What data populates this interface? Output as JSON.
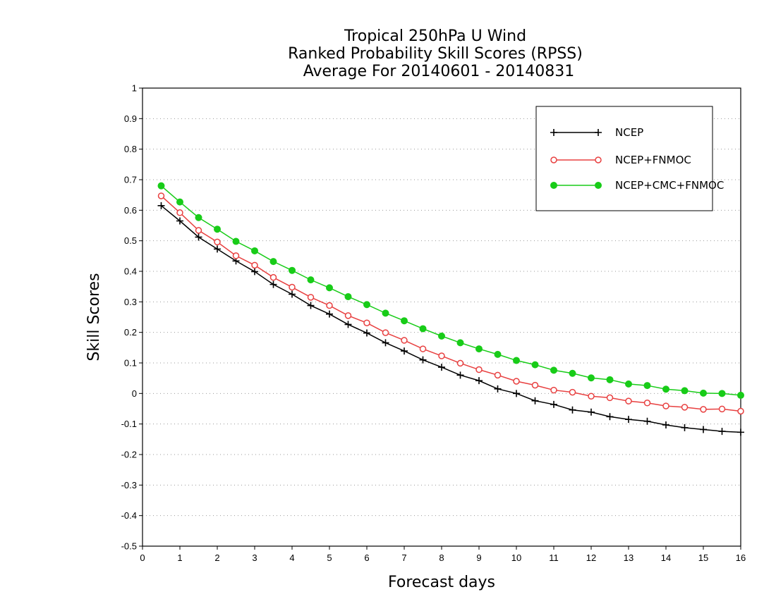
{
  "chart_data": {
    "type": "line",
    "title": [
      "Tropical 250hPa U Wind",
      "Ranked Probability Skill Scores (RPSS)",
      "Average For 20140601 - 20140831"
    ],
    "xlabel": "Forecast days",
    "ylabel": "Skill Scores",
    "xlim": [
      0,
      16
    ],
    "ylim": [
      -0.5,
      1
    ],
    "xticks": [
      "0",
      "1",
      "2",
      "3",
      "4",
      "5",
      "6",
      "7",
      "8",
      "9",
      "10",
      "11",
      "12",
      "13",
      "14",
      "15",
      "16"
    ],
    "yticks": [
      "1",
      "0.9",
      "0.8",
      "0.7",
      "0.6",
      "0.5",
      "0.4",
      "0.3",
      "0.2",
      "0.1",
      "0",
      "-0.1",
      "-0.2",
      "-0.3",
      "-0.4",
      "-0.5"
    ],
    "ytick_values": [
      1,
      0.9,
      0.8,
      0.7,
      0.6,
      0.5,
      0.4,
      0.3,
      0.2,
      0.1,
      0,
      -0.1,
      -0.2,
      -0.3,
      -0.4,
      -0.5
    ],
    "grid": "horizontal dotted",
    "legend_position": "top-right",
    "x": [
      0.5,
      1,
      1.5,
      2,
      2.5,
      3,
      3.5,
      4,
      4.5,
      5,
      5.5,
      6,
      6.5,
      7,
      7.5,
      8,
      8.5,
      9,
      9.5,
      10,
      10.5,
      11,
      11.5,
      12,
      12.5,
      13,
      13.5,
      14,
      14.5,
      15,
      15.5,
      16
    ],
    "series": [
      {
        "name": "NCEP",
        "color": "#000000",
        "marker": "plus",
        "values": [
          0.615,
          0.565,
          0.512,
          0.473,
          0.434,
          0.399,
          0.357,
          0.325,
          0.288,
          0.26,
          0.226,
          0.198,
          0.166,
          0.139,
          0.11,
          0.086,
          0.06,
          0.042,
          0.015,
          0.0,
          -0.024,
          -0.036,
          -0.054,
          -0.061,
          -0.076,
          -0.085,
          -0.091,
          -0.103,
          -0.112,
          -0.118,
          -0.124,
          -0.127
        ]
      },
      {
        "name": "NCEP+FNMOC",
        "color": "#e84040",
        "marker": "open-circle",
        "values": [
          0.647,
          0.592,
          0.534,
          0.496,
          0.451,
          0.42,
          0.38,
          0.348,
          0.315,
          0.288,
          0.255,
          0.231,
          0.199,
          0.174,
          0.146,
          0.123,
          0.099,
          0.078,
          0.06,
          0.04,
          0.027,
          0.011,
          0.004,
          -0.009,
          -0.014,
          -0.025,
          -0.031,
          -0.041,
          -0.045,
          -0.052,
          -0.051,
          -0.058
        ]
      },
      {
        "name": "NCEP+CMC+FNMOC",
        "color": "#18cc18",
        "marker": "filled-circle",
        "values": [
          0.68,
          0.627,
          0.576,
          0.538,
          0.498,
          0.467,
          0.432,
          0.403,
          0.372,
          0.346,
          0.317,
          0.291,
          0.263,
          0.238,
          0.212,
          0.188,
          0.166,
          0.146,
          0.128,
          0.108,
          0.094,
          0.076,
          0.066,
          0.051,
          0.045,
          0.031,
          0.026,
          0.014,
          0.009,
          0.001,
          0.0,
          -0.006
        ]
      }
    ]
  }
}
